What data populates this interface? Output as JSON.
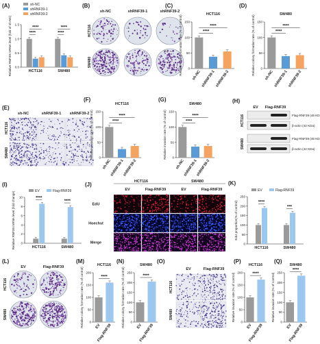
{
  "panels": {
    "A": "(A)",
    "B": "(B)",
    "C": "(C)",
    "D": "(D)",
    "E": "(E)",
    "F": "(F)",
    "G": "(G)",
    "H": "(H)",
    "I": "(I)",
    "J": "(J)",
    "K": "(K)",
    "L": "(L)",
    "M": "(M)",
    "N": "(N)",
    "O": "(O)",
    "P": "(P)",
    "Q": "(Q)"
  },
  "image_panels": {
    "B": {
      "cols": [
        "sh-NC",
        "shRNF39-1",
        "shRNF39-2"
      ],
      "rows": [
        "HCT116",
        "SW480"
      ],
      "inset": "(A)"
    },
    "E": {
      "cols": [
        "sh-NC",
        "shRNF39-1",
        "shRNF39-2"
      ],
      "rows": [
        "HCT116",
        "SW480"
      ]
    },
    "H": {
      "cols": [
        "EV",
        "Flag-RNF39"
      ],
      "rows": [
        "HCT116",
        "SW480"
      ],
      "bands": [
        "Flag-RNF39 (46 KDa)",
        "β-actin (42 KDa)",
        "Flag-RNF39 (46 KDa)",
        "β-actin (42 KDa)"
      ]
    },
    "J": {
      "groups": [
        "HCT116",
        "SW480"
      ],
      "cols": [
        "EV",
        "Flag-RNF39",
        "EV",
        "Flag-RNF39"
      ],
      "rows": [
        "EdU",
        "Hoechst",
        "Merge"
      ]
    },
    "L": {
      "cols": [
        "EV",
        "Flag-RNF39"
      ],
      "rows": [
        "HCT116",
        "SW480"
      ]
    },
    "O": {
      "cols": [
        "EV",
        "Flag-RNF39"
      ],
      "rows": [
        "HCT116",
        "SW480"
      ]
    }
  },
  "colors": {
    "control": "#9a9a9a",
    "kd1": "#5b9bd5",
    "kd2": "#f4a460",
    "oe": "#9cc8f0",
    "text": "#222222"
  },
  "chart_data": [
    {
      "id": "A",
      "type": "bar",
      "title": "",
      "ylabel": "Relative RNF39 mRNA level (fold of sh-NC)",
      "categories": [
        "HCT116",
        "SW480"
      ],
      "ylim": [
        0,
        1.5
      ],
      "yticks": [
        "0.0",
        "0.5",
        "1.0",
        "1.5"
      ],
      "legend": "top-left",
      "series": [
        {
          "name": "sh-NC",
          "values": [
            1.0,
            1.0
          ]
        },
        {
          "name": "shRNF39-1",
          "values": [
            0.3,
            0.42
          ]
        },
        {
          "name": "shRNF39-2",
          "values": [
            0.35,
            0.35
          ]
        }
      ],
      "sig": [
        "****",
        "****",
        "****",
        "****"
      ]
    },
    {
      "id": "C",
      "type": "bar",
      "title": "HCT116",
      "ylabel": "Relative colony formation rate (% of control)",
      "categories": [
        "sh-NC",
        "shRNF39-1",
        "shRNF39-2"
      ],
      "ylim": [
        0,
        150
      ],
      "yticks": [
        "0",
        "50",
        "100",
        "150"
      ],
      "values": [
        100,
        38,
        55
      ],
      "sig": [
        "****",
        "****"
      ]
    },
    {
      "id": "D",
      "type": "bar",
      "title": "SW480",
      "ylabel": "Relative colony formation rate (% of control)",
      "categories": [
        "sh-NC",
        "shRNF39-1",
        "shRNF39-2"
      ],
      "ylim": [
        0,
        150
      ],
      "yticks": [
        "0",
        "50",
        "100",
        "150"
      ],
      "values": [
        100,
        40,
        43
      ],
      "sig": [
        "****",
        "****"
      ]
    },
    {
      "id": "F",
      "type": "bar",
      "title": "HCT116",
      "ylabel": "Relative invasion rate (% of control)",
      "categories": [
        "sh-NC",
        "shRNF39-1",
        "shRNF39-2"
      ],
      "ylim": [
        0,
        150
      ],
      "yticks": [
        "0",
        "50",
        "100",
        "150"
      ],
      "values": [
        100,
        28,
        38
      ],
      "sig": [
        "****",
        "****"
      ]
    },
    {
      "id": "G",
      "type": "bar",
      "title": "SW480",
      "ylabel": "Relative invasion rate (% of control)",
      "categories": [
        "sh-NC",
        "shRNF39-1",
        "shRNF39-2"
      ],
      "ylim": [
        0,
        150
      ],
      "yticks": [
        "0",
        "50",
        "100",
        "150"
      ],
      "values": [
        100,
        36,
        38
      ],
      "sig": [
        "****",
        "****"
      ]
    },
    {
      "id": "I",
      "type": "bar",
      "title": "",
      "ylabel": "Relative RNF39 mRNA level (fold change)",
      "categories": [
        "HCT116",
        "SW480"
      ],
      "ylim": [
        0,
        10
      ],
      "yticks": [
        "0",
        "2",
        "4",
        "6",
        "8",
        "10"
      ],
      "legend": "top-left",
      "series": [
        {
          "name": "EV",
          "values": [
            1.0,
            1.0
          ]
        },
        {
          "name": "Flag-RNF39",
          "values": [
            8.6,
            7.9
          ]
        }
      ],
      "sig": [
        "****",
        "****"
      ]
    },
    {
      "id": "K",
      "type": "bar",
      "title": "",
      "ylabel": "EdU proportion(% of control)",
      "categories": [
        "HCT116",
        "SW480"
      ],
      "ylim": [
        0,
        250
      ],
      "yticks": [
        "0",
        "50",
        "100",
        "150",
        "200",
        "250"
      ],
      "legend": "top-left",
      "series": [
        {
          "name": "EV",
          "values": [
            100,
            100
          ]
        },
        {
          "name": "Flag-RNF39",
          "values": [
            190,
            165
          ]
        }
      ],
      "sig": [
        "****",
        "***"
      ]
    },
    {
      "id": "M",
      "type": "bar",
      "title": "HCT116",
      "ylabel": "Relative colony formation rate (% of control)",
      "categories": [
        "EV",
        "Flag-RNF39"
      ],
      "ylim": [
        0,
        200
      ],
      "yticks": [
        "0",
        "50",
        "100",
        "150",
        "200"
      ],
      "values": [
        100,
        160
      ],
      "sig": [
        "****"
      ]
    },
    {
      "id": "N",
      "type": "bar",
      "title": "SW480",
      "ylabel": "Relative colony formation rate (% of control)",
      "categories": [
        "EV",
        "Flag-RNF39"
      ],
      "ylim": [
        0,
        250
      ],
      "yticks": [
        "0",
        "50",
        "100",
        "150",
        "200",
        "250"
      ],
      "values": [
        100,
        205
      ],
      "sig": [
        "****"
      ]
    },
    {
      "id": "P",
      "type": "bar",
      "title": "HCT116",
      "ylabel": "Relative invasion rate (% of control)",
      "categories": [
        "EV",
        "Flag-RNF39"
      ],
      "ylim": [
        0,
        200
      ],
      "yticks": [
        "0",
        "50",
        "100",
        "150",
        "200"
      ],
      "values": [
        100,
        172
      ],
      "sig": [
        "****"
      ]
    },
    {
      "id": "Q",
      "type": "bar",
      "title": "SW480",
      "ylabel": "Relative invasion rate (% of control)",
      "categories": [
        "EV",
        "Flag-RNF39"
      ],
      "ylim": [
        0,
        250
      ],
      "yticks": [
        "0",
        "50",
        "100",
        "150",
        "200",
        "250"
      ],
      "values": [
        100,
        235
      ],
      "sig": [
        "****"
      ]
    }
  ]
}
